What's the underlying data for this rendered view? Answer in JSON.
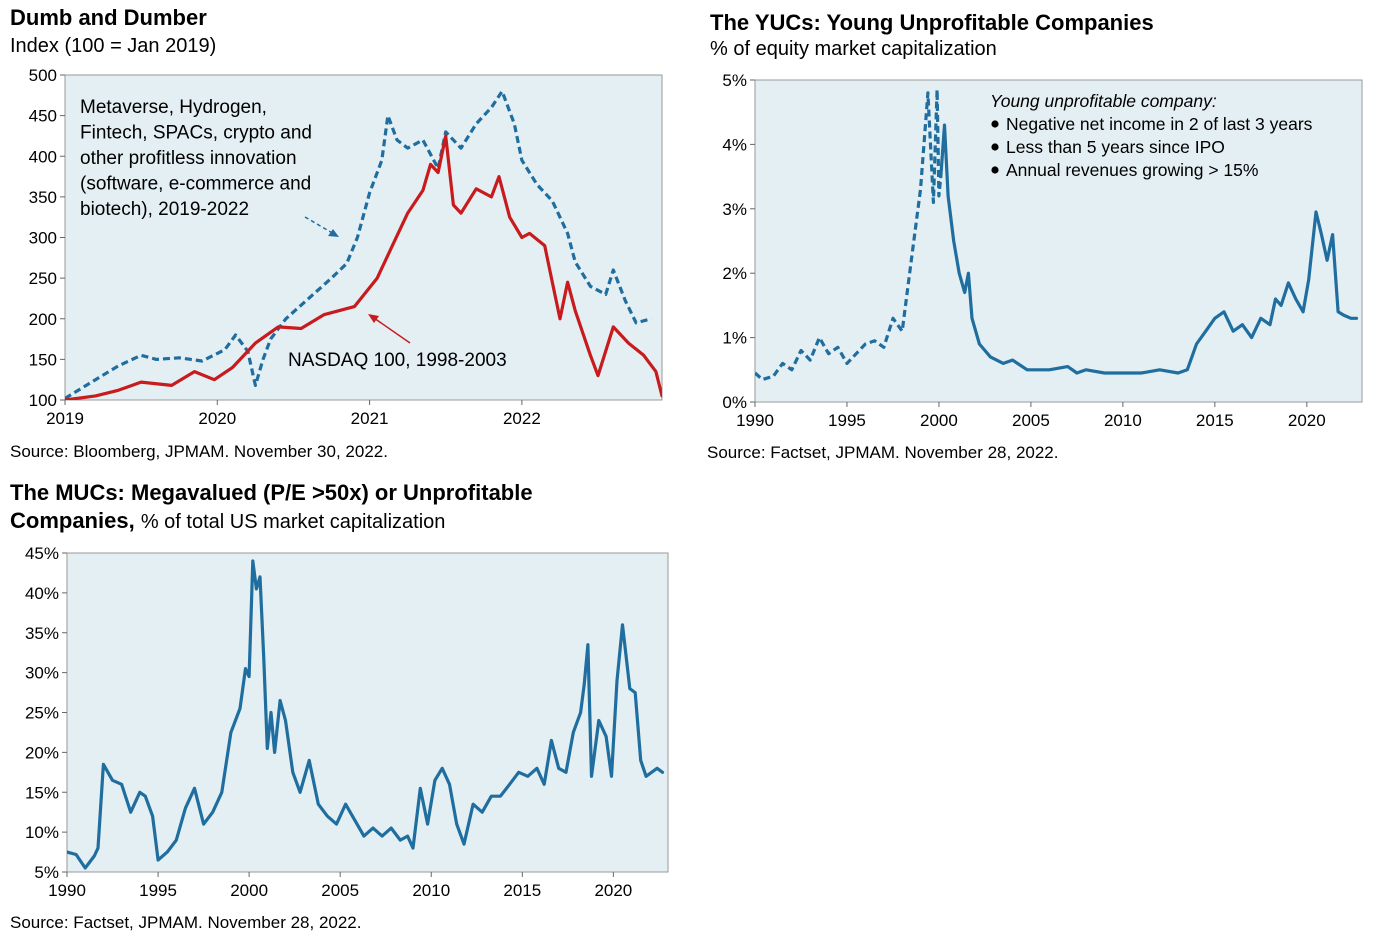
{
  "chart_data": [
    {
      "type": "line",
      "title": "Dumb and Dumber",
      "subtitle": "Index (100 = Jan 2019)",
      "xlabel": "",
      "ylabel": "",
      "x_tick_labels": [
        "2019",
        "2020",
        "2021",
        "2022"
      ],
      "y_tick_labels": [
        "100",
        "150",
        "200",
        "250",
        "300",
        "350",
        "400",
        "450",
        "500"
      ],
      "xlim": [
        2019.0,
        2022.92
      ],
      "ylim": [
        100,
        500
      ],
      "grid": false,
      "background": "#e4eff3",
      "source": "Source: Bloomberg, JPMAM. November 30, 2022.",
      "annotations": {
        "dumb_lines": [
          "Metaverse, Hydrogen,",
          "Fintech, SPACs, crypto and",
          "other profitless innovation",
          "(software, e-commerce and",
          "biotech), 2019-2022"
        ],
        "nasdaq": "NASDAQ 100, 1998-2003"
      },
      "series": [
        {
          "color": "#1f6e9f",
          "style": "dashed",
          "x": [
            2019.0,
            2019.2,
            2019.35,
            2019.5,
            2019.6,
            2019.75,
            2019.9,
            2020.05,
            2020.12,
            2020.2,
            2020.25,
            2020.3,
            2020.35,
            2020.45,
            2020.6,
            2020.75,
            2020.85,
            2020.92,
            2021.0,
            2021.08,
            2021.12,
            2021.18,
            2021.25,
            2021.35,
            2021.45,
            2021.5,
            2021.6,
            2021.7,
            2021.8,
            2021.87,
            2021.95,
            2022.0,
            2022.1,
            2022.2,
            2022.3,
            2022.35,
            2022.45,
            2022.55,
            2022.6,
            2022.68,
            2022.75,
            2022.85
          ],
          "values": [
            102,
            125,
            142,
            155,
            150,
            152,
            148,
            162,
            180,
            160,
            118,
            150,
            175,
            200,
            225,
            250,
            268,
            300,
            355,
            395,
            450,
            420,
            410,
            420,
            385,
            430,
            410,
            440,
            460,
            480,
            440,
            395,
            365,
            345,
            305,
            270,
            240,
            230,
            260,
            222,
            195,
            200
          ]
        },
        {
          "color": "#c81b1e",
          "style": "solid",
          "x": [
            2019.0,
            2019.2,
            2019.35,
            2019.5,
            2019.7,
            2019.85,
            2019.98,
            2020.1,
            2020.25,
            2020.4,
            2020.55,
            2020.7,
            2020.9,
            2021.05,
            2021.15,
            2021.25,
            2021.35,
            2021.4,
            2021.45,
            2021.5,
            2021.55,
            2021.6,
            2021.7,
            2021.8,
            2021.85,
            2021.92,
            2022.0,
            2022.05,
            2022.15,
            2022.2,
            2022.25,
            2022.3,
            2022.35,
            2022.45,
            2022.5,
            2022.6,
            2022.7,
            2022.8,
            2022.88,
            2022.92
          ],
          "values": [
            100,
            105,
            112,
            122,
            118,
            135,
            125,
            140,
            170,
            190,
            188,
            205,
            215,
            250,
            290,
            330,
            358,
            390,
            380,
            425,
            340,
            330,
            360,
            350,
            375,
            325,
            300,
            305,
            290,
            245,
            200,
            245,
            210,
            155,
            130,
            190,
            170,
            155,
            135,
            105
          ]
        }
      ]
    },
    {
      "type": "line",
      "title": "The YUCs: Young Unprofitable Companies",
      "subtitle": "% of equity market capitalization",
      "xlabel": "",
      "ylabel": "",
      "x_tick_labels": [
        "1990",
        "1995",
        "2000",
        "2005",
        "2010",
        "2015",
        "2020"
      ],
      "y_tick_labels": [
        "0%",
        "1%",
        "2%",
        "3%",
        "4%",
        "5%"
      ],
      "xlim": [
        1990,
        2023
      ],
      "ylim": [
        0,
        5
      ],
      "grid": false,
      "background": "#e4eff3",
      "source": "Source: Factset, JPMAM. November 28, 2022.",
      "legend": {
        "heading": "Young unprofitable company:",
        "items": [
          "Negative net income in 2 of last 3 years",
          "Less than 5 years since IPO",
          "Annual revenues growing > 15%"
        ]
      },
      "series": [
        {
          "color": "#1f6e9f",
          "style": "dashed",
          "x": [
            1990.0,
            1990.4,
            1991.0,
            1991.5,
            1992.0,
            1992.5,
            1993.0,
            1993.5,
            1994.0,
            1994.5,
            1995.0,
            1995.5,
            1996.0,
            1996.5,
            1997.0,
            1997.5,
            1998.0,
            1998.5,
            1999.0,
            1999.4,
            1999.7,
            1999.9,
            2000.0,
            2000.1
          ],
          "values": [
            0.45,
            0.35,
            0.4,
            0.6,
            0.5,
            0.8,
            0.65,
            1.0,
            0.75,
            0.85,
            0.6,
            0.75,
            0.9,
            0.95,
            0.85,
            1.3,
            1.1,
            2.2,
            3.3,
            4.8,
            3.1,
            4.85,
            3.2,
            3.5
          ]
        },
        {
          "color": "#1f6e9f",
          "style": "solid",
          "x": [
            2000.1,
            2000.3,
            2000.5,
            2000.8,
            2001.1,
            2001.4,
            2001.6,
            2001.8,
            2002.2,
            2002.8,
            2003.5,
            2004.0,
            2004.8,
            2005.5,
            2006.0,
            2007.0,
            2007.5,
            2008.0,
            2009.0,
            2010.0,
            2011.0,
            2012.0,
            2013.0,
            2013.5,
            2014.0,
            2014.5,
            2015.0,
            2015.5,
            2016.0,
            2016.5,
            2017.0,
            2017.5,
            2018.0,
            2018.3,
            2018.6,
            2019.0,
            2019.4,
            2019.8,
            2020.1,
            2020.5,
            2020.8,
            2021.1,
            2021.4,
            2021.7,
            2022.0,
            2022.4,
            2022.7
          ],
          "values": [
            3.5,
            4.3,
            3.2,
            2.5,
            2.0,
            1.7,
            2.0,
            1.3,
            0.9,
            0.7,
            0.6,
            0.65,
            0.5,
            0.5,
            0.5,
            0.55,
            0.45,
            0.5,
            0.45,
            0.45,
            0.45,
            0.5,
            0.45,
            0.5,
            0.9,
            1.1,
            1.3,
            1.4,
            1.1,
            1.2,
            1.0,
            1.3,
            1.2,
            1.6,
            1.5,
            1.85,
            1.6,
            1.4,
            1.9,
            2.95,
            2.6,
            2.2,
            2.6,
            1.4,
            1.35,
            1.3,
            1.3
          ]
        }
      ]
    },
    {
      "type": "line",
      "title": "The MUCs: Megavalued (P/E >50x) or Unprofitable Companies",
      "subtitle": "% of total US market capitalization",
      "title_lines": [
        "The MUCs: Megavalued (P/E >50x) or Unprofitable",
        "Companies,"
      ],
      "xlabel": "",
      "ylabel": "",
      "x_tick_labels": [
        "1990",
        "1995",
        "2000",
        "2005",
        "2010",
        "2015",
        "2020"
      ],
      "y_tick_labels": [
        "5%",
        "10%",
        "15%",
        "20%",
        "25%",
        "30%",
        "35%",
        "40%",
        "45%"
      ],
      "xlim": [
        1990,
        2023
      ],
      "ylim": [
        5,
        45
      ],
      "grid": false,
      "background": "#e4eff3",
      "source": "Source: Factset, JPMAM. November 28, 2022.",
      "series": [
        {
          "color": "#1f6e9f",
          "style": "solid",
          "x": [
            1990.0,
            1990.5,
            1991.0,
            1991.5,
            1991.7,
            1992.0,
            1992.5,
            1993.0,
            1993.5,
            1994.0,
            1994.3,
            1994.7,
            1995.0,
            1995.5,
            1996.0,
            1996.5,
            1997.0,
            1997.5,
            1998.0,
            1998.5,
            1999.0,
            1999.5,
            1999.8,
            2000.0,
            2000.2,
            2000.4,
            2000.6,
            2000.8,
            2001.0,
            2001.2,
            2001.4,
            2001.7,
            2002.0,
            2002.4,
            2002.8,
            2003.3,
            2003.8,
            2004.3,
            2004.8,
            2005.3,
            2005.8,
            2006.3,
            2006.8,
            2007.3,
            2007.8,
            2008.3,
            2008.7,
            2009.0,
            2009.4,
            2009.8,
            2010.2,
            2010.6,
            2011.0,
            2011.4,
            2011.8,
            2012.3,
            2012.8,
            2013.3,
            2013.8,
            2014.3,
            2014.8,
            2015.3,
            2015.8,
            2016.2,
            2016.6,
            2017.0,
            2017.4,
            2017.8,
            2018.2,
            2018.4,
            2018.6,
            2018.8,
            2019.2,
            2019.6,
            2019.9,
            2020.2,
            2020.5,
            2020.9,
            2021.2,
            2021.5,
            2021.8,
            2022.1,
            2022.4,
            2022.7
          ],
          "values": [
            7.5,
            7.2,
            5.5,
            7.0,
            8.0,
            18.5,
            16.5,
            16.0,
            12.5,
            15.0,
            14.5,
            12.0,
            6.5,
            7.5,
            9.0,
            13.0,
            15.5,
            11.0,
            12.5,
            15.0,
            22.5,
            25.5,
            30.5,
            29.5,
            44.0,
            40.5,
            42.0,
            32.0,
            20.5,
            25.0,
            20.0,
            26.5,
            24.0,
            17.5,
            15.0,
            19.0,
            13.5,
            12.0,
            11.0,
            13.5,
            11.5,
            9.5,
            10.5,
            9.5,
            10.5,
            9.0,
            9.5,
            8.0,
            15.5,
            11.0,
            16.5,
            18.0,
            16.0,
            11.0,
            8.5,
            13.5,
            12.5,
            14.5,
            14.5,
            16.0,
            17.5,
            17.0,
            18.0,
            16.0,
            21.5,
            18.0,
            17.5,
            22.5,
            25.0,
            28.5,
            33.5,
            17.0,
            24.0,
            22.0,
            17.0,
            29.0,
            36.0,
            28.0,
            27.5,
            19.0,
            17.0,
            17.5,
            18.0,
            17.5
          ]
        }
      ]
    }
  ]
}
